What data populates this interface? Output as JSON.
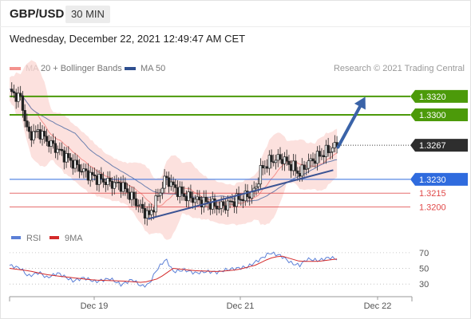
{
  "header": {
    "symbol": "GBP/USD",
    "timeframe": "30 MIN",
    "datetime": "Wednesday, December 22, 2021 12:49:47 AM CET"
  },
  "legend": {
    "items": [
      {
        "label": "MA 20 + Bollinger Bands",
        "color": "#f4928e"
      },
      {
        "label": "MA 50",
        "color": "#2f4f8f"
      }
    ],
    "copyright": "Research © 2021 Trading Central"
  },
  "chart_data": [
    {
      "type": "candlestick",
      "title": "GBP/USD 30 MIN",
      "ylim": [
        1.3165,
        1.3345
      ],
      "x_labels": [
        "Dec 19",
        "Dec 21",
        "Dec 22"
      ],
      "last_price": {
        "value": "1.3267",
        "level": 1.3267
      },
      "levels": [
        {
          "label": "1.3320",
          "value": 1.332,
          "color": "#4c9a0a",
          "kind": "resistance"
        },
        {
          "label": "1.3300",
          "value": 1.33,
          "color": "#4c9a0a",
          "kind": "resistance"
        },
        {
          "label": "1.3230",
          "value": 1.323,
          "color": "#2f6bde",
          "kind": "pivot"
        },
        {
          "label": "1.3215",
          "value": 1.3215,
          "color": "#e04848",
          "kind": "support"
        },
        {
          "label": "1.3200",
          "value": 1.32,
          "color": "#e04848",
          "kind": "support"
        }
      ],
      "trendline": {
        "start": [
          0.372,
          1.3187
        ],
        "end": [
          0.87,
          1.324
        ]
      },
      "arrow": {
        "start": [
          0.883,
          1.3265
        ],
        "end": [
          0.95,
          1.3315
        ]
      },
      "series": [
        {
          "name": "GBP/USD",
          "close_path": [
            [
              0,
              1.3325
            ],
            [
              0.03,
              1.3318
            ],
            [
              0.05,
              1.3278
            ],
            [
              0.08,
              1.3282
            ],
            [
              0.1,
              1.3272
            ],
            [
              0.13,
              1.3262
            ],
            [
              0.17,
              1.3248
            ],
            [
              0.2,
              1.3238
            ],
            [
              0.23,
              1.3232
            ],
            [
              0.27,
              1.3226
            ],
            [
              0.3,
              1.3224
            ],
            [
              0.33,
              1.321
            ],
            [
              0.355,
              1.3198
            ],
            [
              0.375,
              1.319
            ],
            [
              0.395,
              1.3208
            ],
            [
              0.42,
              1.3232
            ],
            [
              0.44,
              1.3222
            ],
            [
              0.47,
              1.3212
            ],
            [
              0.5,
              1.3208
            ],
            [
              0.53,
              1.3205
            ],
            [
              0.56,
              1.32
            ],
            [
              0.58,
              1.3202
            ],
            [
              0.61,
              1.3208
            ],
            [
              0.64,
              1.3212
            ],
            [
              0.66,
              1.3218
            ],
            [
              0.675,
              1.324
            ],
            [
              0.7,
              1.325
            ],
            [
              0.73,
              1.3253
            ],
            [
              0.76,
              1.3244
            ],
            [
              0.78,
              1.3236
            ],
            [
              0.8,
              1.3247
            ],
            [
              0.83,
              1.3255
            ],
            [
              0.86,
              1.3262
            ],
            [
              0.88,
              1.3267
            ]
          ]
        }
      ]
    },
    {
      "type": "line",
      "title": "RSI",
      "ylim": [
        20,
        75
      ],
      "yticks": [
        70,
        50,
        30
      ],
      "series": [
        {
          "name": "RSI",
          "color": "#5b7fd6",
          "values": [
            [
              0,
              54
            ],
            [
              0.03,
              50
            ],
            [
              0.05,
              40
            ],
            [
              0.08,
              45
            ],
            [
              0.1,
              38
            ],
            [
              0.13,
              44
            ],
            [
              0.17,
              34
            ],
            [
              0.2,
              38
            ],
            [
              0.23,
              33
            ],
            [
              0.27,
              37
            ],
            [
              0.3,
              29
            ],
            [
              0.33,
              36
            ],
            [
              0.355,
              27
            ],
            [
              0.375,
              30
            ],
            [
              0.395,
              48
            ],
            [
              0.42,
              62
            ],
            [
              0.44,
              46
            ],
            [
              0.47,
              48
            ],
            [
              0.5,
              44
            ],
            [
              0.53,
              46
            ],
            [
              0.56,
              45
            ],
            [
              0.58,
              48
            ],
            [
              0.61,
              50
            ],
            [
              0.64,
              52
            ],
            [
              0.66,
              58
            ],
            [
              0.675,
              62
            ],
            [
              0.7,
              70
            ],
            [
              0.73,
              66
            ],
            [
              0.76,
              56
            ],
            [
              0.78,
              54
            ],
            [
              0.8,
              62
            ],
            [
              0.83,
              60
            ],
            [
              0.86,
              64
            ],
            [
              0.88,
              62
            ]
          ]
        },
        {
          "name": "9MA",
          "color": "#d42a2a",
          "values": [
            [
              0,
              50
            ],
            [
              0.05,
              47
            ],
            [
              0.1,
              42
            ],
            [
              0.17,
              38
            ],
            [
              0.23,
              35
            ],
            [
              0.3,
              34
            ],
            [
              0.36,
              32
            ],
            [
              0.4,
              37
            ],
            [
              0.44,
              50
            ],
            [
              0.5,
              47
            ],
            [
              0.56,
              46
            ],
            [
              0.61,
              48
            ],
            [
              0.66,
              54
            ],
            [
              0.7,
              63
            ],
            [
              0.73,
              66
            ],
            [
              0.78,
              59
            ],
            [
              0.83,
              59
            ],
            [
              0.88,
              62
            ]
          ]
        }
      ]
    }
  ]
}
